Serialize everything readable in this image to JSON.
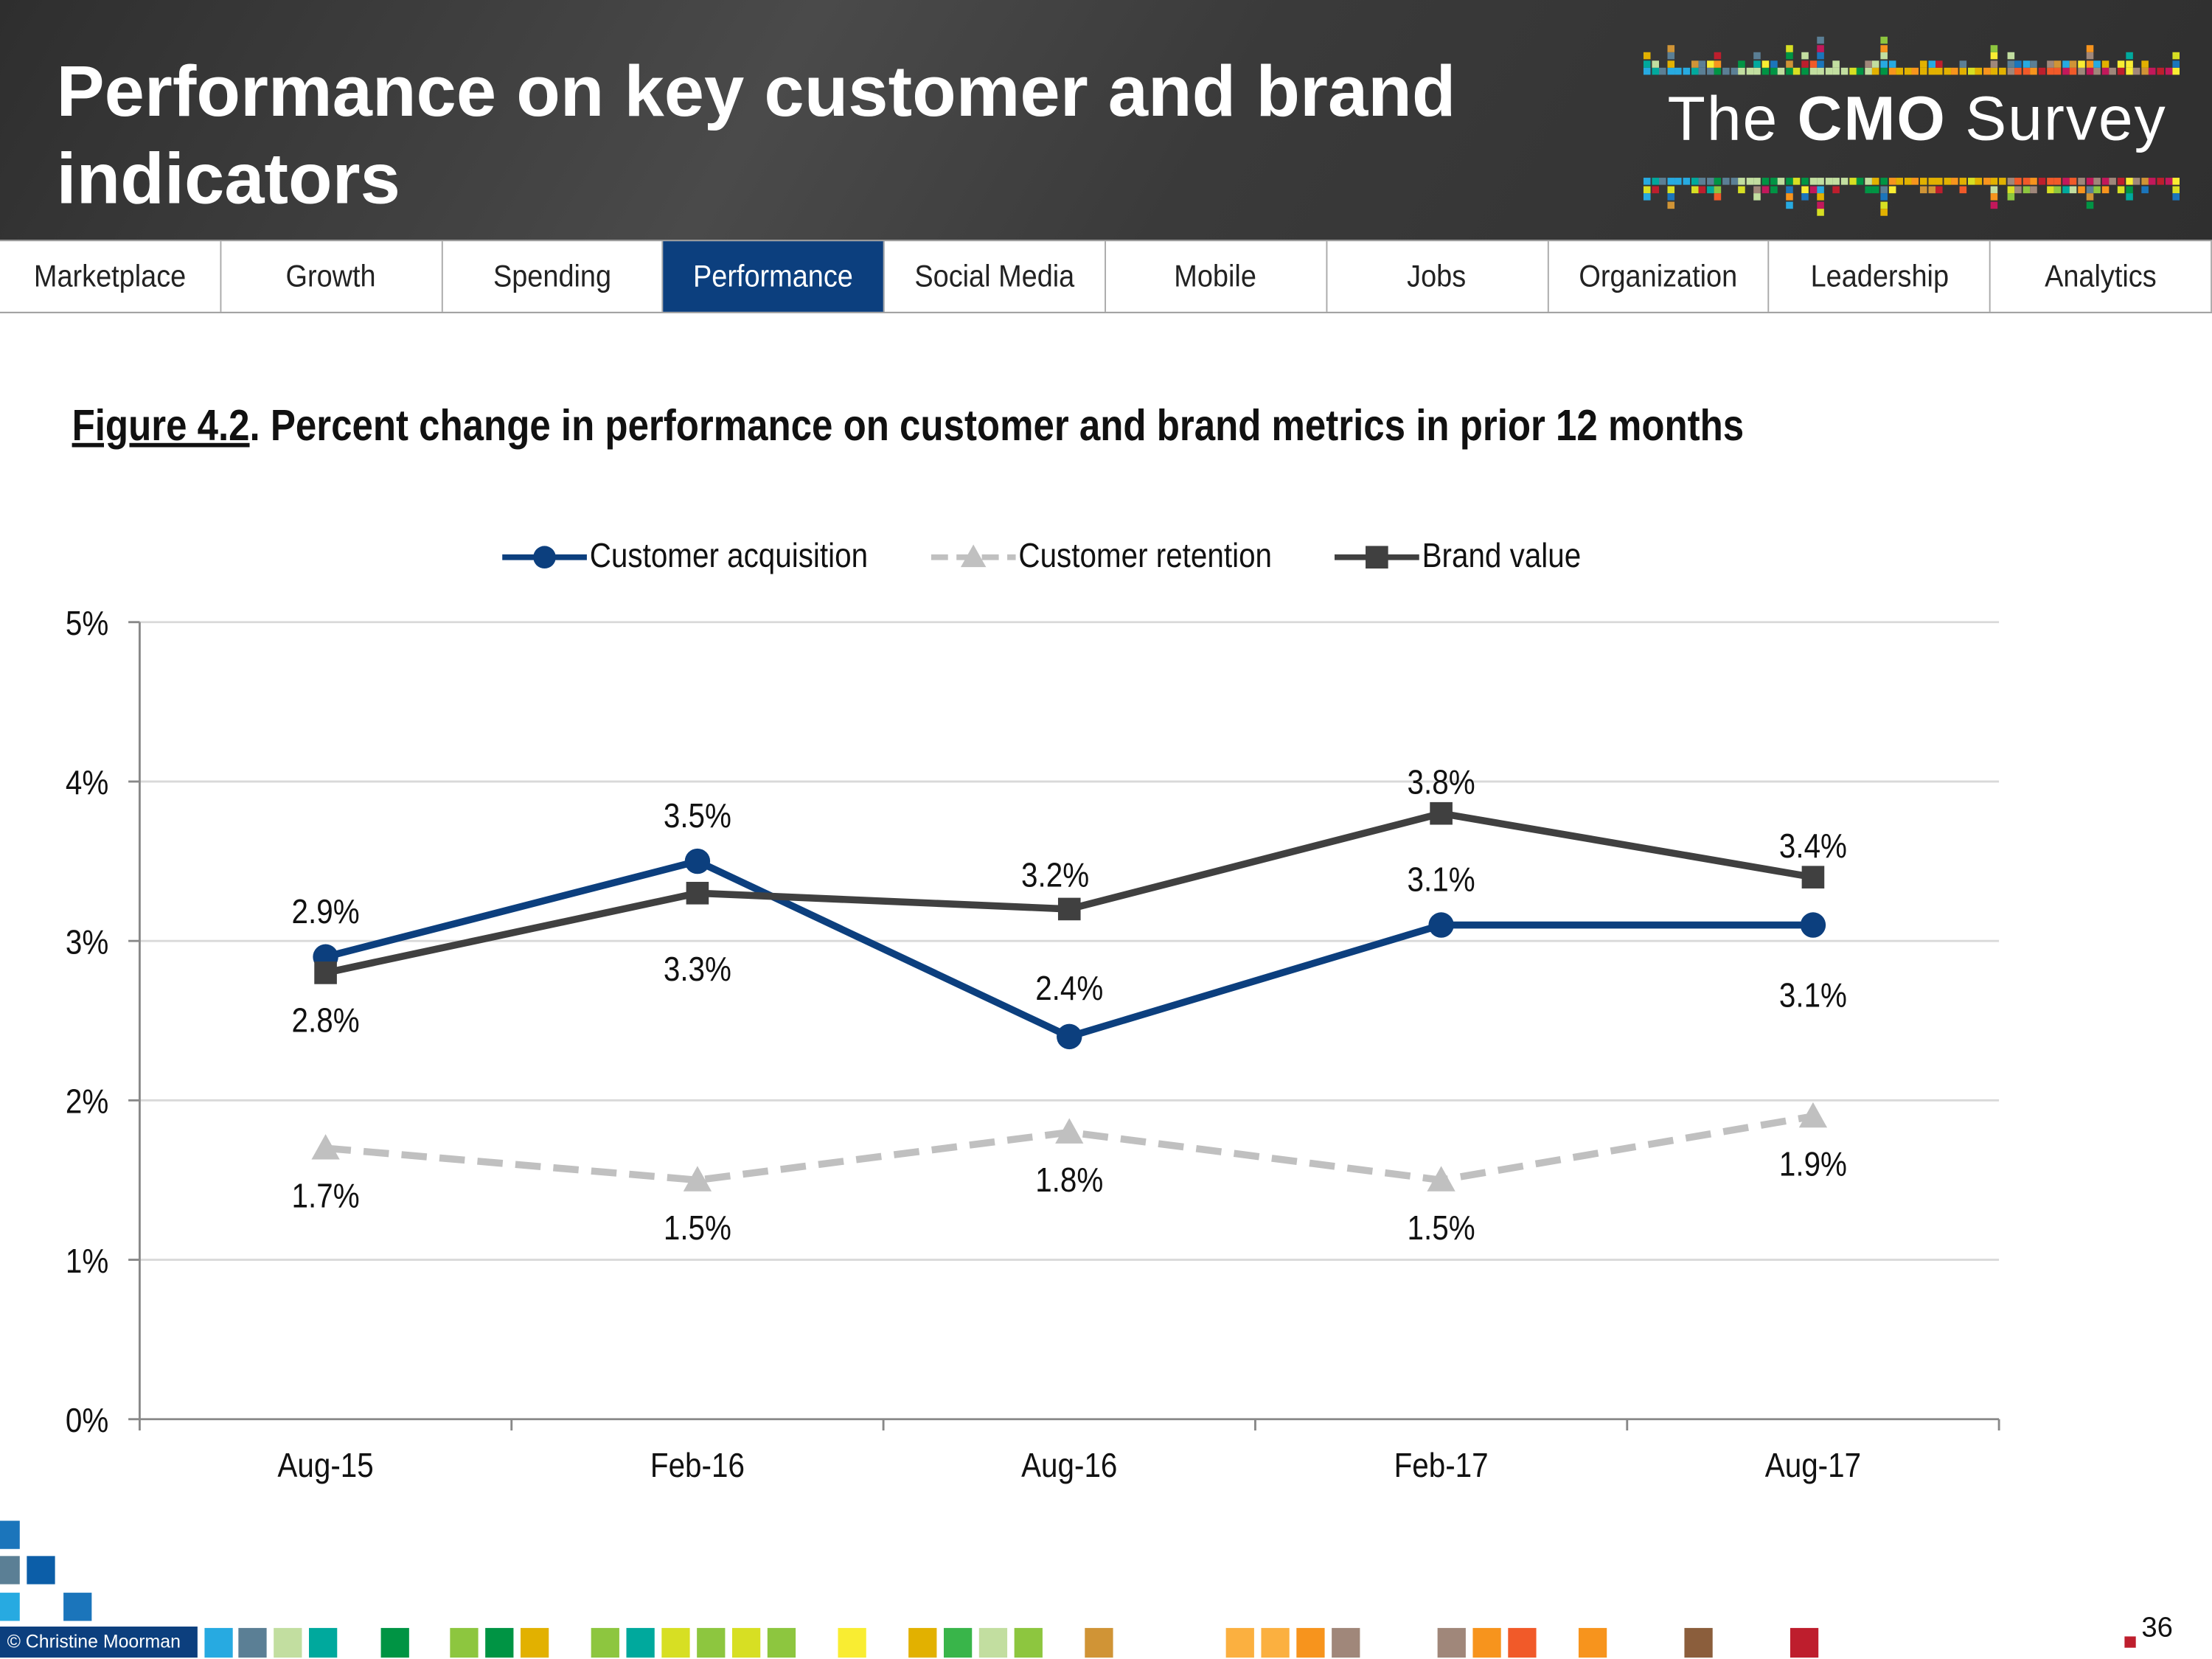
{
  "header": {
    "title": "Performance on key customer and brand indicators",
    "logo_text_the": "The",
    "logo_text_cmo": "CMO",
    "logo_text_survey": "Survey"
  },
  "nav": {
    "tabs": [
      {
        "label": "Marketplace",
        "active": false
      },
      {
        "label": "Growth",
        "active": false
      },
      {
        "label": "Spending",
        "active": false
      },
      {
        "label": "Performance",
        "active": true
      },
      {
        "label": "Social Media",
        "active": false
      },
      {
        "label": "Mobile",
        "active": false
      },
      {
        "label": "Jobs",
        "active": false
      },
      {
        "label": "Organization",
        "active": false
      },
      {
        "label": "Leadership",
        "active": false
      },
      {
        "label": "Analytics",
        "active": false
      }
    ],
    "active_color": "#0c3f7e"
  },
  "figure": {
    "number": "Figure 4.2",
    "caption": ".  Percent change in performance on customer and brand metrics in prior 12 months"
  },
  "chart_data": {
    "type": "line",
    "title": "",
    "xlabel": "",
    "ylabel": "",
    "categories": [
      "Aug-15",
      "Feb-16",
      "Aug-16",
      "Feb-17",
      "Aug-17"
    ],
    "ylim": [
      0,
      5
    ],
    "y_ticks": [
      0,
      1,
      2,
      3,
      4,
      5
    ],
    "y_tick_labels": [
      "0%",
      "1%",
      "2%",
      "3%",
      "4%",
      "5%"
    ],
    "grid": true,
    "legend_position": "top",
    "series": [
      {
        "name": "Customer acquisition",
        "values": [
          2.9,
          3.5,
          2.4,
          3.1,
          3.1
        ],
        "labels": [
          "2.9%",
          "3.5%",
          "2.4%",
          "3.1%",
          "3.1%"
        ],
        "color": "#0c3f7e",
        "marker": "circle",
        "dash": false
      },
      {
        "name": "Customer retention",
        "values": [
          1.7,
          1.5,
          1.8,
          1.5,
          1.9
        ],
        "labels": [
          "1.7%",
          "1.5%",
          "1.8%",
          "1.5%",
          "1.9%"
        ],
        "color": "#c0c0c0",
        "marker": "triangle",
        "dash": true
      },
      {
        "name": "Brand value",
        "values": [
          2.8,
          3.3,
          3.2,
          3.8,
          3.4
        ],
        "labels": [
          "2.8%",
          "3.3%",
          "3.2%",
          "3.8%",
          "3.4%"
        ],
        "color": "#404040",
        "marker": "square",
        "dash": false
      }
    ]
  },
  "footer": {
    "credit": "© Christine Moorman",
    "page_number": "36"
  }
}
